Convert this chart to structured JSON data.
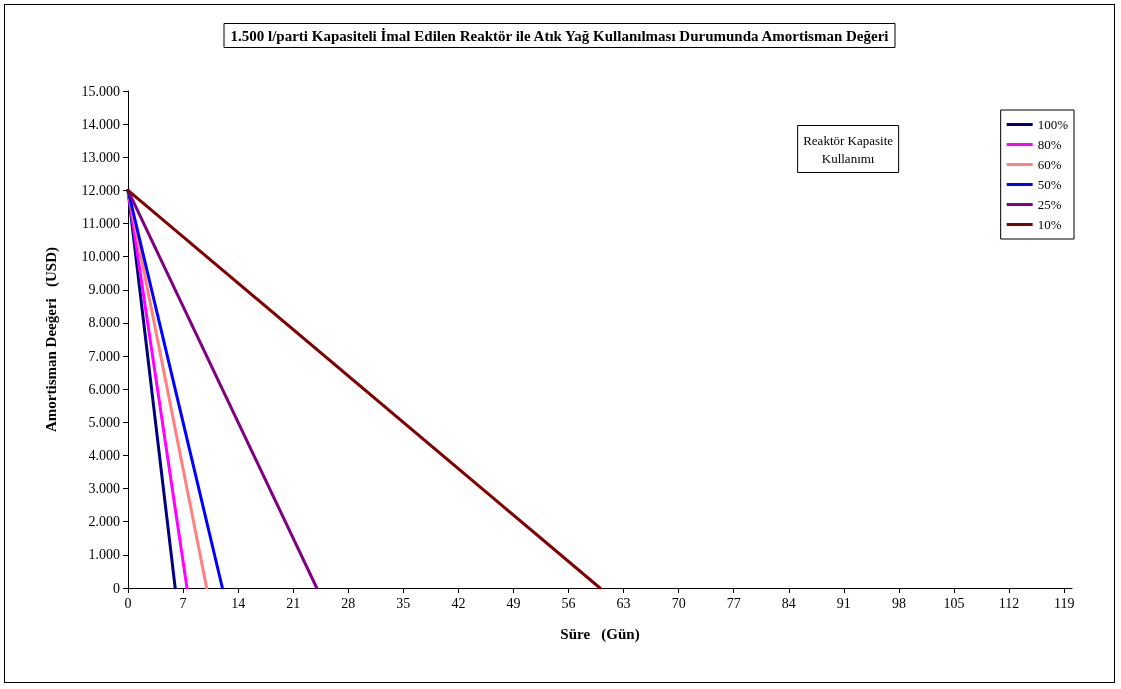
{
  "chart_data": {
    "type": "line",
    "title": "1.500 l/parti Kapasiteli İmal Edilen Reaktör ile Atık Yağ Kullanılması Durumunda Amortisman Değeri",
    "xlabel": "Süre   (Gün)",
    "ylabel": "Amortisman Deeğeri   (USD)",
    "legend_title": "Reaktör Kapasite Kullanımı",
    "series": [
      {
        "name": "100%",
        "color": "#000080",
        "x": [
          0,
          6
        ],
        "values": [
          12000,
          0
        ]
      },
      {
        "name": "80%",
        "color": "#ff00ff",
        "x": [
          0,
          7.5
        ],
        "values": [
          12000,
          0
        ]
      },
      {
        "name": "60%",
        "color": "#ff8080",
        "x": [
          0,
          10
        ],
        "values": [
          12000,
          0
        ]
      },
      {
        "name": "50%",
        "color": "#0000ff",
        "x": [
          0,
          12
        ],
        "values": [
          12000,
          0
        ]
      },
      {
        "name": "25%",
        "color": "#800080",
        "x": [
          0,
          24
        ],
        "values": [
          12000,
          0
        ]
      },
      {
        "name": "10%",
        "color": "#800000",
        "x": [
          0,
          60
        ],
        "values": [
          12000,
          0
        ]
      }
    ],
    "xlim": [
      0,
      120
    ],
    "xticks": [
      0,
      7,
      14,
      21,
      28,
      35,
      42,
      49,
      56,
      63,
      70,
      77,
      84,
      91,
      98,
      105,
      112,
      119
    ],
    "ylim": [
      0,
      15000
    ],
    "yticks": [
      0,
      {
        "value": 1000,
        "label": "1.000"
      },
      {
        "value": 2000,
        "label": "2.000"
      },
      {
        "value": 3000,
        "label": "3.000"
      },
      {
        "value": 4000,
        "label": "4.000"
      },
      {
        "value": 5000,
        "label": "5.000"
      },
      {
        "value": 6000,
        "label": "6.000"
      },
      {
        "value": 7000,
        "label": "7.000"
      },
      {
        "value": 8000,
        "label": "8.000"
      },
      {
        "value": 9000,
        "label": "9.000"
      },
      {
        "value": 10000,
        "label": "10.000"
      },
      {
        "value": 11000,
        "label": "11.000"
      },
      {
        "value": 12000,
        "label": "12.000"
      },
      {
        "value": 13000,
        "label": "13.000"
      },
      {
        "value": 14000,
        "label": "14.000"
      },
      {
        "value": 15000,
        "label": "15.000"
      }
    ],
    "grid": false,
    "legend": "top right",
    "marker": "none",
    "line_style": "solid"
  }
}
